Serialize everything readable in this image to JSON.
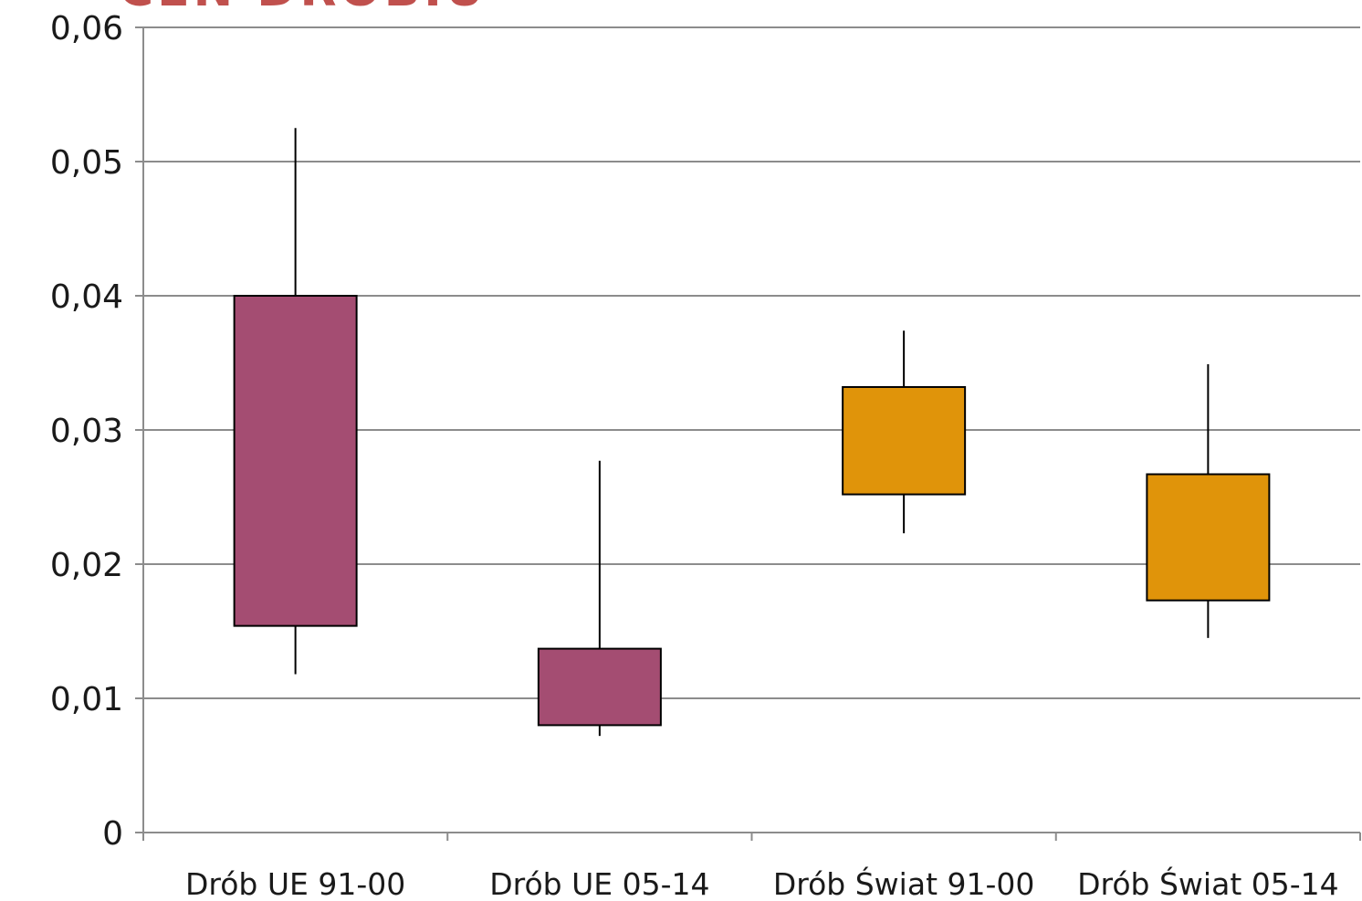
{
  "chart_data": {
    "type": "candlestick",
    "title": "CEN DROBIU",
    "xlabel": "",
    "ylabel": "",
    "ylim": [
      0,
      0.06
    ],
    "y_ticks": [
      0,
      0.01,
      0.02,
      0.03,
      0.04,
      0.05,
      0.06
    ],
    "y_tick_labels": [
      "0",
      "0,01",
      "0,02",
      "0,03",
      "0,04",
      "0,05",
      "0,06"
    ],
    "grid": true,
    "categories": [
      "Drób UE 91-00",
      "Drób UE 05-14",
      "Drób Świat 91-00",
      "Drób Świat 05-14"
    ],
    "boxes": [
      {
        "category": "Drób UE 91-00",
        "low": 0.0118,
        "box_bottom": 0.0154,
        "box_top": 0.04,
        "high": 0.0525,
        "color": "#a44d72"
      },
      {
        "category": "Drób UE 05-14",
        "low": 0.0072,
        "box_bottom": 0.008,
        "box_top": 0.0137,
        "high": 0.0277,
        "color": "#a44d72"
      },
      {
        "category": "Drób Świat 91-00",
        "low": 0.0223,
        "box_bottom": 0.0252,
        "box_top": 0.0332,
        "high": 0.0374,
        "color": "#e0940a"
      },
      {
        "category": "Drób Świat 05-14",
        "low": 0.0145,
        "box_bottom": 0.0173,
        "box_top": 0.0267,
        "high": 0.0349,
        "color": "#e0940a"
      }
    ],
    "colors": {
      "grid": "#8c8c8c",
      "axis": "#8c8c8c",
      "whisker": "#000000",
      "box_stroke": "#000000"
    }
  }
}
